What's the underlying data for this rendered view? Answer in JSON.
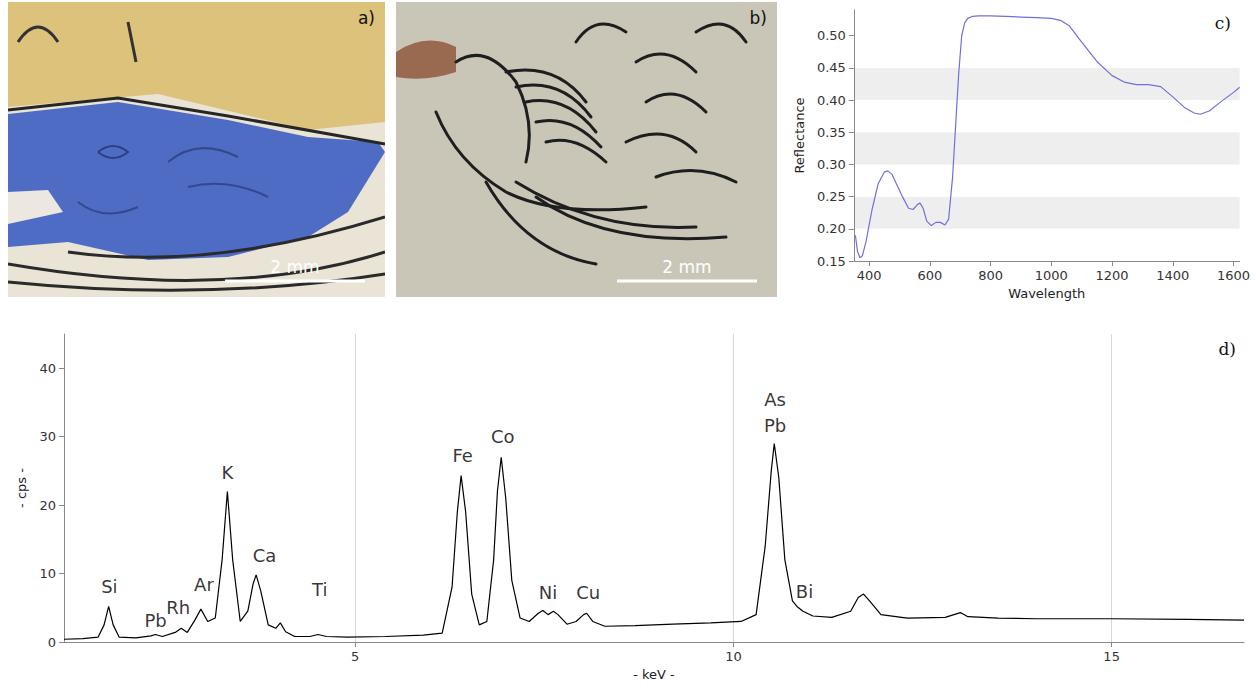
{
  "chart_data": [
    {
      "type": "image",
      "panel": "a)",
      "scale_bar": "2 mm"
    },
    {
      "type": "image",
      "panel": "b)",
      "scale_bar": "2 mm"
    },
    {
      "type": "line",
      "panel": "c)",
      "x_label": "Wavelength",
      "y_label": "Reflectance",
      "color": "#7070dc",
      "grid": true,
      "x": [
        355,
        362,
        370,
        378,
        390,
        410,
        430,
        450,
        462,
        475,
        490,
        510,
        530,
        545,
        560,
        568,
        578,
        590,
        605,
        620,
        635,
        650,
        662,
        675,
        685,
        695,
        705,
        715,
        725,
        740,
        760,
        800,
        850,
        900,
        950,
        1000,
        1030,
        1060,
        1100,
        1150,
        1200,
        1240,
        1280,
        1320,
        1360,
        1400,
        1440,
        1470,
        1490,
        1520,
        1560,
        1600,
        1620
      ],
      "values": [
        0.19,
        0.165,
        0.155,
        0.158,
        0.18,
        0.23,
        0.27,
        0.288,
        0.29,
        0.285,
        0.27,
        0.25,
        0.232,
        0.23,
        0.238,
        0.24,
        0.232,
        0.212,
        0.205,
        0.21,
        0.21,
        0.206,
        0.215,
        0.28,
        0.36,
        0.44,
        0.5,
        0.52,
        0.527,
        0.53,
        0.531,
        0.531,
        0.53,
        0.529,
        0.528,
        0.527,
        0.524,
        0.515,
        0.49,
        0.46,
        0.438,
        0.428,
        0.424,
        0.424,
        0.421,
        0.405,
        0.388,
        0.38,
        0.378,
        0.383,
        0.398,
        0.412,
        0.42
      ],
      "xlim": [
        350,
        1620
      ],
      "xticks": [
        400,
        600,
        800,
        1000,
        1200,
        1400,
        1600
      ],
      "ylim": [
        0.15,
        0.54
      ],
      "yticks": [
        {
          "value": 0.15,
          "label": "0.15"
        },
        {
          "value": 0.2,
          "label": "0.20"
        },
        {
          "value": 0.25,
          "label": "0.25"
        },
        {
          "value": 0.3,
          "label": "0.30"
        },
        {
          "value": 0.35,
          "label": "0.35"
        },
        {
          "value": 0.4,
          "label": "0.40"
        },
        {
          "value": 0.45,
          "label": "0.45"
        },
        {
          "value": 0.5,
          "label": "0.50"
        }
      ]
    },
    {
      "type": "line",
      "panel": "d)",
      "x_label": "- keV -",
      "y_label": "- cps -",
      "color": "#000000",
      "grid": true,
      "x": [
        1.15,
        1.4,
        1.6,
        1.68,
        1.74,
        1.8,
        1.88,
        2.1,
        2.3,
        2.36,
        2.45,
        2.62,
        2.7,
        2.78,
        2.88,
        2.96,
        3.05,
        3.15,
        3.24,
        3.31,
        3.38,
        3.48,
        3.58,
        3.65,
        3.69,
        3.75,
        3.85,
        3.95,
        4.01,
        4.08,
        4.2,
        4.4,
        4.51,
        4.62,
        4.9,
        5.4,
        5.9,
        6.15,
        6.28,
        6.35,
        6.4,
        6.46,
        6.54,
        6.64,
        6.74,
        6.83,
        6.88,
        6.93,
        6.99,
        7.07,
        7.18,
        7.3,
        7.42,
        7.48,
        7.55,
        7.62,
        7.68,
        7.8,
        7.92,
        8.02,
        8.06,
        8.14,
        8.3,
        8.7,
        9.2,
        9.7,
        10.1,
        10.3,
        10.42,
        10.5,
        10.54,
        10.6,
        10.68,
        10.78,
        10.84,
        10.92,
        11.05,
        11.3,
        11.55,
        11.65,
        11.72,
        11.8,
        11.95,
        12.3,
        12.8,
        13.0,
        13.1,
        13.5,
        14.0,
        15.0,
        16.0,
        16.75
      ],
      "values": [
        0.4,
        0.5,
        0.7,
        2.5,
        5.2,
        2.5,
        0.7,
        0.6,
        0.9,
        1.1,
        0.8,
        1.4,
        2.0,
        1.4,
        3.2,
        4.8,
        3.0,
        3.5,
        12,
        22,
        12,
        3.0,
        4.5,
        8.5,
        9.8,
        7.5,
        2.5,
        2.0,
        2.8,
        1.5,
        0.8,
        0.8,
        1.1,
        0.8,
        0.7,
        0.8,
        1.0,
        1.3,
        8,
        19,
        24.3,
        19,
        7,
        2.5,
        3,
        12,
        22,
        27,
        21,
        9,
        3.5,
        3.0,
        4.2,
        4.6,
        4.0,
        4.5,
        4.0,
        2.6,
        3.0,
        4.0,
        4.2,
        3.0,
        2.3,
        2.4,
        2.6,
        2.8,
        3.0,
        4.0,
        14,
        25,
        29,
        24,
        12,
        6,
        5.2,
        4.5,
        3.8,
        3.6,
        4.5,
        6.5,
        7.0,
        6.0,
        4.0,
        3.5,
        3.6,
        4.3,
        3.7,
        3.5,
        3.4,
        3.4,
        3.3,
        3.2
      ],
      "xlim": [
        1.15,
        16.75
      ],
      "xticks": [
        5,
        10,
        15
      ],
      "ylim": [
        0,
        45
      ],
      "yticks": [
        0,
        10,
        20,
        30,
        40
      ],
      "annotations": [
        {
          "text": "Si",
          "x": 1.75,
          "y": 8.1
        },
        {
          "text": "Pb",
          "x": 2.36,
          "y": 3.1
        },
        {
          "text": "Rh",
          "x": 2.66,
          "y": 5.1
        },
        {
          "text": "Ar",
          "x": 3.0,
          "y": 8.4
        },
        {
          "text": "K",
          "x": 3.31,
          "y": 24.8
        },
        {
          "text": "Ca",
          "x": 3.8,
          "y": 12.6
        },
        {
          "text": "Ti",
          "x": 4.53,
          "y": 7.6
        },
        {
          "text": "Fe",
          "x": 6.42,
          "y": 27.2
        },
        {
          "text": "Co",
          "x": 6.95,
          "y": 30.0
        },
        {
          "text": "Ni",
          "x": 7.55,
          "y": 7.2
        },
        {
          "text": "Cu",
          "x": 8.08,
          "y": 7.2
        },
        {
          "text": "As",
          "x": 10.55,
          "y": 35.4
        },
        {
          "text": "Pb",
          "x": 10.55,
          "y": 31.6
        },
        {
          "text": "Bi",
          "x": 10.94,
          "y": 7.4
        }
      ]
    }
  ]
}
